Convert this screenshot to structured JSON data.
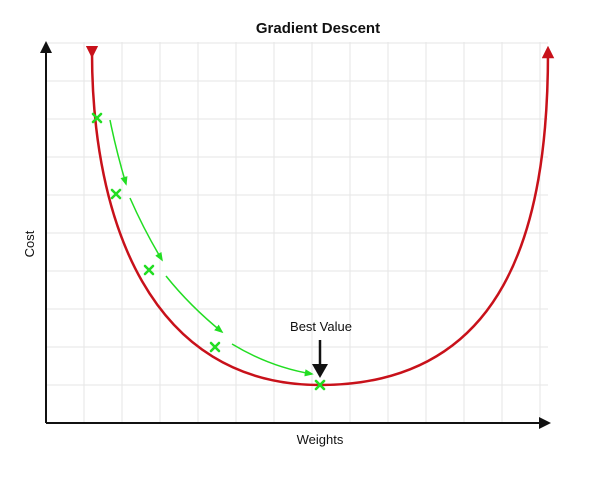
{
  "title": "Gradient Descent",
  "x_axis_label": "Weights",
  "y_axis_label": "Cost",
  "annotation": "Best Value",
  "colors": {
    "curve": "#c8111a",
    "steps": "#22dd22",
    "axes": "#111111",
    "grid": "#e6e6e6",
    "annotation_arrow": "#111111"
  }
}
